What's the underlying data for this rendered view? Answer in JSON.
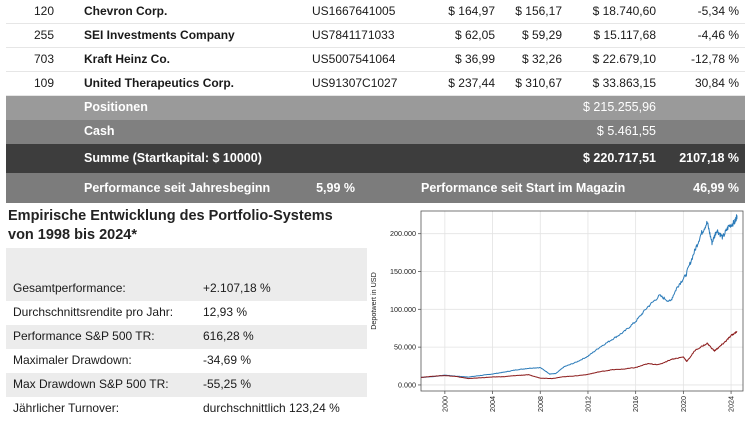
{
  "holdings": [
    {
      "qty": "120",
      "name": "Chevron Corp.",
      "isin": "US1667641005",
      "buy": "$ 164,97",
      "current": "$ 156,17",
      "value": "$ 18.740,60",
      "perf": "-5,34 %"
    },
    {
      "qty": "255",
      "name": "SEI Investments Company",
      "isin": "US7841171033",
      "buy": "$ 62,05",
      "current": "$ 59,29",
      "value": "$ 15.117,68",
      "perf": "-4,46 %"
    },
    {
      "qty": "703",
      "name": "Kraft Heinz Co.",
      "isin": "US5007541064",
      "buy": "$ 36,99",
      "current": "$ 32,26",
      "value": "$ 22.679,10",
      "perf": "-12,78 %"
    },
    {
      "qty": "109",
      "name": "United Therapeutics Corp.",
      "isin": "US91307C1027",
      "buy": "$ 237,44",
      "current": "$ 310,67",
      "value": "$ 33.863,15",
      "perf": "30,84 %"
    }
  ],
  "summary": {
    "positions_label": "Positionen",
    "positions_value": "$ 215.255,96",
    "cash_label": "Cash",
    "cash_value": "$ 5.461,55",
    "total_label": "Summe (Startkapital: $ 10000)",
    "total_value": "$ 220.717,51",
    "total_perf": "2107,18 %",
    "ytd_label": "Performance seit Jahresbeginn",
    "ytd_value": "5,99 %",
    "since_start_label": "Performance seit Start im Magazin",
    "since_start_value": "46,99 %"
  },
  "stats": {
    "title_line1": "Empirische Entwicklung des Portfolio-Systems",
    "title_line2": "von 1998 bis 2024*",
    "rows": [
      {
        "label": "Gesamtperformance:",
        "value": "+2.107,18 %"
      },
      {
        "label": "Durchschnittsrendite pro Jahr:",
        "value": "12,93 %"
      },
      {
        "label": "Performance S&P 500 TR:",
        "value": "616,28 %"
      },
      {
        "label": "Maximaler Drawdown:",
        "value": "-34,69 %"
      },
      {
        "label": "Max Drawdown S&P 500 TR:",
        "value": "-55,25 %"
      },
      {
        "label": "Jährlicher Turnover:",
        "value": "durchschnittlich 123,24 %"
      }
    ]
  },
  "chart_data": {
    "type": "line",
    "ylabel": "Depotwert in USD",
    "xlabel": "",
    "xlim": [
      1998,
      2025
    ],
    "ylim": [
      -8000,
      230000
    ],
    "x_ticks": [
      2000,
      2004,
      2008,
      2012,
      2016,
      2020,
      2024
    ],
    "x_tick_labels": [
      "2000",
      "2004",
      "2008",
      "2012",
      "2016",
      "2020",
      "2024"
    ],
    "y_ticks": [
      0,
      50000,
      100000,
      150000,
      200000
    ],
    "y_tick_labels": [
      "0.000",
      "50.000",
      "100.000",
      "150.000",
      "200.000"
    ],
    "grid": true,
    "legend": "none",
    "series": [
      {
        "color": "#2b7bb9",
        "x": [
          1998.0,
          1999.0,
          2000.0,
          2001.0,
          2002.0,
          2003.0,
          2004.0,
          2005.0,
          2006.0,
          2007.0,
          2008.0,
          2008.8,
          2009.3,
          2010.0,
          2011.0,
          2012.0,
          2013.0,
          2014.0,
          2015.0,
          2016.0,
          2017.0,
          2018.0,
          2018.9,
          2019.5,
          2020.2,
          2020.9,
          2021.5,
          2022.0,
          2022.4,
          2022.8,
          2023.3,
          2023.8,
          2024.3,
          2024.5
        ],
        "y": [
          10000,
          11000,
          13000,
          11500,
          10500,
          12500,
          14500,
          17000,
          20000,
          22000,
          23000,
          14500,
          15000,
          24000,
          30000,
          38000,
          50000,
          60000,
          70000,
          84000,
          103000,
          118000,
          110000,
          130000,
          145000,
          175000,
          200000,
          215000,
          188000,
          205000,
          195000,
          210000,
          215000,
          224000
        ]
      },
      {
        "color": "#8b1a1a",
        "x": [
          1998.0,
          1999.0,
          2000.0,
          2001.0,
          2002.0,
          2003.0,
          2004.0,
          2005.0,
          2006.0,
          2007.0,
          2008.0,
          2009.0,
          2010.0,
          2011.0,
          2012.0,
          2013.0,
          2014.0,
          2015.0,
          2016.0,
          2017.0,
          2018.0,
          2019.0,
          2020.0,
          2020.3,
          2021.0,
          2022.0,
          2022.6,
          2023.0,
          2023.5,
          2024.0,
          2024.5
        ],
        "y": [
          10000,
          11500,
          12500,
          11000,
          8500,
          9500,
          10500,
          11000,
          12500,
          13500,
          9000,
          8500,
          11000,
          12000,
          14000,
          17500,
          20000,
          21000,
          23000,
          28000,
          27000,
          34000,
          37000,
          31000,
          46000,
          55000,
          45000,
          50000,
          57000,
          65000,
          71000
        ]
      }
    ]
  }
}
